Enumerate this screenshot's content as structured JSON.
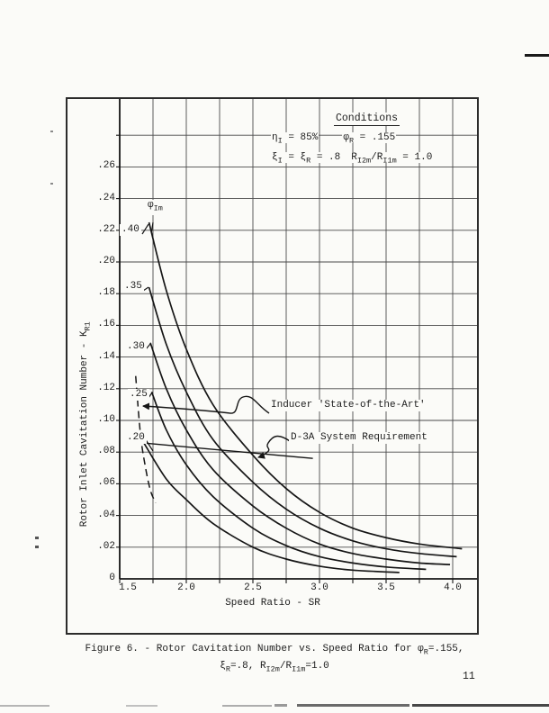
{
  "page": {
    "ink_color": "#1d1d1d",
    "paper_color": "#fbfbf8",
    "page_number": "11",
    "caption": {
      "line1": [
        {
          "n": "Figure 6. - Rotor Cavitation Number vs. Speed Ratio for "
        },
        {
          "n": "φ"
        },
        {
          "s": "R"
        },
        {
          "n": "=.155,"
        }
      ],
      "line2": [
        {
          "n": "ξ"
        },
        {
          "s": "R"
        },
        {
          "n": "=.8,  R"
        },
        {
          "s": "I2m"
        },
        {
          "n": "/R"
        },
        {
          "s": "I1m"
        },
        {
          "n": "=1.0"
        }
      ]
    }
  },
  "figure": {
    "conditions": {
      "title": "Conditions",
      "row1_left": [
        {
          "n": "η"
        },
        {
          "s": "I"
        },
        {
          "n": " = 85%"
        }
      ],
      "row1_right": [
        {
          "n": "φ"
        },
        {
          "s": "R"
        },
        {
          "n": " = .155"
        }
      ],
      "row2_left": [
        {
          "n": "ξ"
        },
        {
          "s": "I"
        },
        {
          "n": " = ξ"
        },
        {
          "s": "R"
        },
        {
          "n": " = .8"
        }
      ],
      "row2_right": [
        {
          "n": "R"
        },
        {
          "s": "I2m"
        },
        {
          "n": "/R"
        },
        {
          "s": "I1m"
        },
        {
          "n": " = 1.0"
        }
      ]
    },
    "family_label": [
      {
        "n": "φ"
      },
      {
        "s": "Im"
      }
    ],
    "y_axis": {
      "label": [
        {
          "n": "Rotor Inlet Cavitation Number - K"
        },
        {
          "s": "R1"
        }
      ],
      "ticks": [
        "0",
        ".02",
        ".04",
        ".06",
        ".08",
        ".10",
        ".12",
        ".14",
        ".16",
        ".18",
        ".20",
        ".22",
        ".24",
        ".26"
      ]
    },
    "x_axis": {
      "label": "Speed Ratio - SR",
      "ticks": [
        "1.5",
        "2.0",
        "2.5",
        "3.0",
        "3.5",
        "4.0"
      ]
    },
    "annotations": {
      "inducer": "Inducer 'State-of-the-Art'",
      "d3a": "D-3A System Requirement"
    }
  },
  "chart_data": {
    "type": "line",
    "title": "Rotor Cavitation Number vs. Speed Ratio",
    "xlabel": "Speed Ratio - SR",
    "ylabel": "Rotor Inlet Cavitation Number - K_R1",
    "xlim": [
      1.5,
      4.18
    ],
    "ylim": [
      0,
      0.3
    ],
    "x_ticks": [
      1.5,
      2.0,
      2.5,
      3.0,
      3.5,
      4.0
    ],
    "y_tick_step": 0.02,
    "grid": "on (0.25 in x, 0.02 in y)",
    "family_parameter": "phi_Im",
    "series": [
      {
        "id": "phi-40",
        "label": ".40",
        "style": "solid",
        "points": [
          [
            1.72,
            0.225
          ],
          [
            1.85,
            0.182
          ],
          [
            2.0,
            0.145
          ],
          [
            2.2,
            0.11
          ],
          [
            2.5,
            0.078
          ],
          [
            2.75,
            0.057
          ],
          [
            3.0,
            0.042
          ],
          [
            3.25,
            0.032
          ],
          [
            3.5,
            0.026
          ],
          [
            3.75,
            0.022
          ],
          [
            4.07,
            0.019
          ]
        ]
      },
      {
        "id": "phi-35",
        "label": ".35",
        "style": "solid",
        "points": [
          [
            1.72,
            0.184
          ],
          [
            1.85,
            0.148
          ],
          [
            2.0,
            0.118
          ],
          [
            2.2,
            0.088
          ],
          [
            2.5,
            0.061
          ],
          [
            2.75,
            0.044
          ],
          [
            3.0,
            0.032
          ],
          [
            3.25,
            0.024
          ],
          [
            3.5,
            0.019
          ],
          [
            3.75,
            0.016
          ],
          [
            4.03,
            0.014
          ]
        ]
      },
      {
        "id": "phi-30",
        "label": ".30",
        "style": "solid",
        "points": [
          [
            1.73,
            0.149
          ],
          [
            1.85,
            0.12
          ],
          [
            2.0,
            0.094
          ],
          [
            2.2,
            0.069
          ],
          [
            2.5,
            0.046
          ],
          [
            2.75,
            0.032
          ],
          [
            3.0,
            0.022
          ],
          [
            3.25,
            0.016
          ],
          [
            3.5,
            0.0125
          ],
          [
            3.75,
            0.01
          ],
          [
            3.98,
            0.009
          ]
        ]
      },
      {
        "id": "phi-25",
        "label": ".25",
        "style": "solid",
        "points": [
          [
            1.74,
            0.118
          ],
          [
            1.85,
            0.094
          ],
          [
            2.0,
            0.072
          ],
          [
            2.2,
            0.052
          ],
          [
            2.5,
            0.032
          ],
          [
            2.75,
            0.021
          ],
          [
            3.0,
            0.014
          ],
          [
            3.25,
            0.01
          ],
          [
            3.5,
            0.0075
          ],
          [
            3.8,
            0.006
          ]
        ]
      },
      {
        "id": "phi-20",
        "label": ".20",
        "style": "solid",
        "points": [
          [
            1.68,
            0.086
          ],
          [
            1.85,
            0.063
          ],
          [
            2.0,
            0.05
          ],
          [
            2.2,
            0.035
          ],
          [
            2.5,
            0.02
          ],
          [
            2.75,
            0.0125
          ],
          [
            3.0,
            0.008
          ],
          [
            3.25,
            0.0055
          ],
          [
            3.6,
            0.004
          ]
        ]
      },
      {
        "id": "inducer-state-of-the-art",
        "label": "Inducer 'State-of-the-Art'",
        "style": "dashed",
        "points": [
          [
            1.62,
            0.128
          ],
          [
            1.655,
            0.092
          ],
          [
            1.69,
            0.072
          ],
          [
            1.73,
            0.056
          ],
          [
            1.77,
            0.048
          ]
        ]
      },
      {
        "id": "d3a-requirement",
        "label": "D-3A System Requirement",
        "style": "straight",
        "points": [
          [
            1.65,
            0.086
          ],
          [
            2.95,
            0.076
          ]
        ]
      }
    ]
  }
}
